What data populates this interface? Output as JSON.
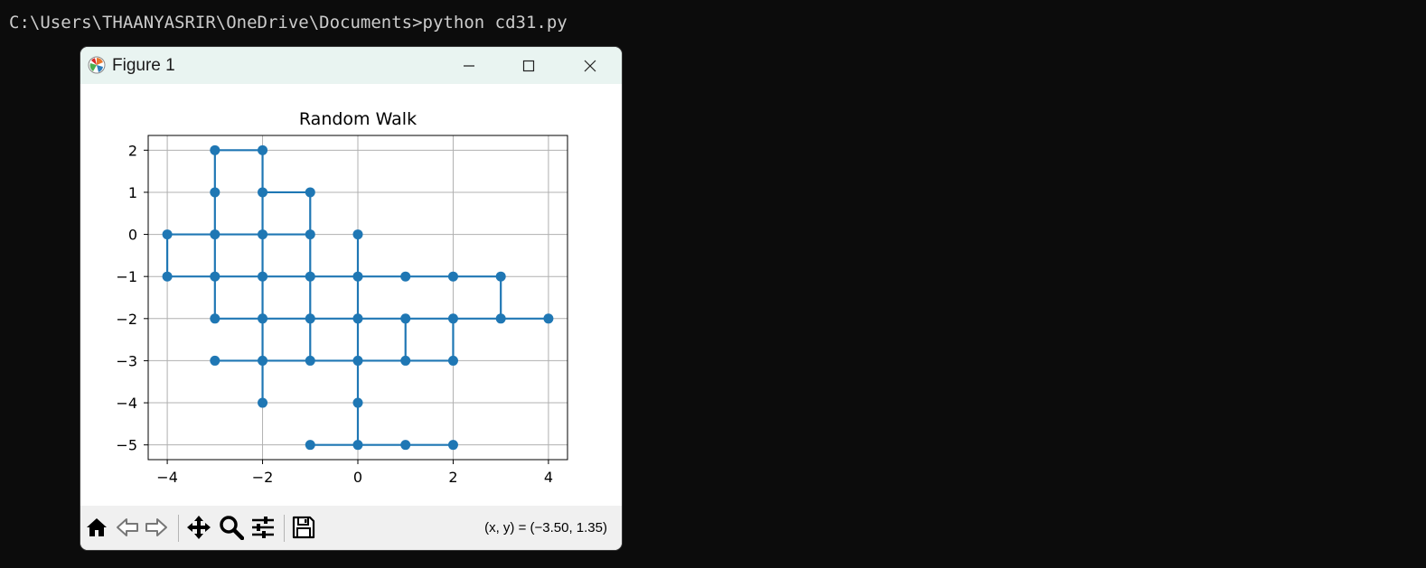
{
  "terminal": {
    "prompt_line": "C:\\Users\\THAANYASRIR\\OneDrive\\Documents>python cd31.py"
  },
  "window": {
    "title": "Figure 1",
    "app_icon": "matplotlib-icon"
  },
  "toolbar": {
    "buttons": [
      "home-icon",
      "back-icon",
      "forward-icon",
      "pan-icon",
      "zoom-icon",
      "configure-subplots-icon",
      "save-icon"
    ],
    "coordinates": "(x, y) = (−3.50, 1.35)"
  },
  "colors": {
    "series": "#1f77b4",
    "grid": "#b0b0b0",
    "titlebar": "#e9f4f1",
    "toolbar": "#f0f0f0"
  },
  "chart_data": {
    "type": "line",
    "title": "Random Walk",
    "xlabel": "",
    "ylabel": "",
    "xlim": [
      -4.4,
      4.4
    ],
    "ylim": [
      -5.35,
      2.35
    ],
    "grid": true,
    "xticks": [
      -4,
      -2,
      0,
      2,
      4
    ],
    "xtick_labels": [
      "−4",
      "−2",
      "0",
      "2",
      "4"
    ],
    "yticks": [
      2,
      1,
      0,
      -1,
      -2,
      -3,
      -4,
      -5
    ],
    "ytick_labels": [
      "2",
      "1",
      "0",
      "−1",
      "−2",
      "−3",
      "−4",
      "−5"
    ],
    "markers": true,
    "segments": [
      [
        [
          -3,
          2
        ],
        [
          -2,
          2
        ]
      ],
      [
        [
          -3,
          2
        ],
        [
          -3,
          -1
        ]
      ],
      [
        [
          -2,
          2
        ],
        [
          -2,
          1
        ]
      ],
      [
        [
          -2,
          1
        ],
        [
          -1,
          1
        ]
      ],
      [
        [
          -1,
          1
        ],
        [
          -1,
          -3
        ]
      ],
      [
        [
          -4,
          0
        ],
        [
          -1,
          0
        ]
      ],
      [
        [
          -4,
          0
        ],
        [
          -4,
          -1
        ]
      ],
      [
        [
          -4,
          -1
        ],
        [
          3,
          -1
        ]
      ],
      [
        [
          0,
          0
        ],
        [
          0,
          -5
        ]
      ],
      [
        [
          -2,
          1
        ],
        [
          -2,
          -4
        ]
      ],
      [
        [
          -3,
          -1
        ],
        [
          -3,
          -2
        ]
      ],
      [
        [
          -3,
          -2
        ],
        [
          4,
          -2
        ]
      ],
      [
        [
          3,
          -1
        ],
        [
          3,
          -2
        ]
      ],
      [
        [
          -3,
          -3
        ],
        [
          2,
          -3
        ]
      ],
      [
        [
          1,
          -2
        ],
        [
          1,
          -3
        ]
      ],
      [
        [
          2,
          -2
        ],
        [
          2,
          -3
        ]
      ],
      [
        [
          -1,
          -5
        ],
        [
          2,
          -5
        ]
      ]
    ],
    "points": [
      [
        -3,
        2
      ],
      [
        -2,
        2
      ],
      [
        -3,
        1
      ],
      [
        -2,
        1
      ],
      [
        -1,
        1
      ],
      [
        -4,
        0
      ],
      [
        -3,
        0
      ],
      [
        -2,
        0
      ],
      [
        -1,
        0
      ],
      [
        0,
        0
      ],
      [
        -4,
        -1
      ],
      [
        -3,
        -1
      ],
      [
        -2,
        -1
      ],
      [
        -1,
        -1
      ],
      [
        0,
        -1
      ],
      [
        1,
        -1
      ],
      [
        2,
        -1
      ],
      [
        3,
        -1
      ],
      [
        -3,
        -2
      ],
      [
        -2,
        -2
      ],
      [
        -1,
        -2
      ],
      [
        0,
        -2
      ],
      [
        1,
        -2
      ],
      [
        2,
        -2
      ],
      [
        3,
        -2
      ],
      [
        4,
        -2
      ],
      [
        -3,
        -3
      ],
      [
        -2,
        -3
      ],
      [
        -1,
        -3
      ],
      [
        0,
        -3
      ],
      [
        1,
        -3
      ],
      [
        2,
        -3
      ],
      [
        -2,
        -4
      ],
      [
        0,
        -4
      ],
      [
        -1,
        -5
      ],
      [
        0,
        -5
      ],
      [
        1,
        -5
      ],
      [
        2,
        -5
      ]
    ]
  }
}
